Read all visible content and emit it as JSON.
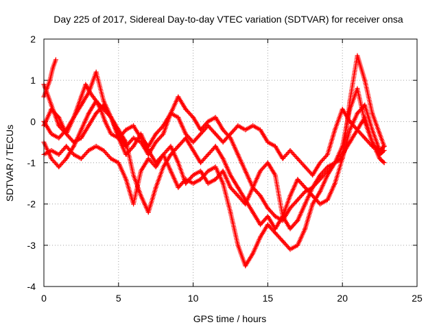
{
  "chart_data": {
    "type": "scatter",
    "title": "Day 225 of 2017, Sidereal Day-to-day VTEC variation (SDTVAR) for receiver onsa",
    "xlabel": "GPS time / hours",
    "ylabel": "SDTVAR / TECUs",
    "xlim": [
      0,
      25
    ],
    "ylim": [
      -4,
      2
    ],
    "xticks": [
      "0",
      "5",
      "10",
      "15",
      "20",
      "25"
    ],
    "yticks": [
      "-4",
      "-3",
      "-2",
      "-1",
      "0",
      "1",
      "2"
    ],
    "grid": true,
    "marker": "+",
    "color": "#ff0000",
    "series": [
      {
        "x": [
          0,
          0.2,
          0.4,
          0.6,
          0.8
        ],
        "y": [
          0.6,
          0.8,
          1.0,
          1.3,
          1.5
        ]
      },
      {
        "x": [
          0,
          0.5,
          1.0,
          1.5,
          2.0,
          2.5,
          2.8,
          3.1,
          3.5,
          3.8,
          4.1,
          4.5,
          5.0,
          5.5,
          6.0,
          6.5,
          7.0,
          7.5,
          8.0,
          8.5,
          9.0,
          9.5,
          10.0,
          10.5,
          11.0,
          11.5,
          12.0,
          12.5,
          13.0,
          13.5,
          14.0,
          14.5,
          15.0,
          15.5,
          16.0,
          16.5,
          17.0,
          17.5,
          18.0,
          18.5,
          19.0,
          19.5,
          20.0,
          20.5,
          21.0,
          21.5,
          22.0,
          22.5,
          22.8
        ],
        "y": [
          0.9,
          0.4,
          -0.1,
          -0.3,
          0.1,
          0.6,
          0.9,
          0.7,
          0.5,
          0.3,
          0.0,
          -0.3,
          -0.4,
          -0.2,
          -0.1,
          -0.4,
          -0.6,
          -0.3,
          -0.1,
          0.2,
          0.1,
          -0.3,
          -0.5,
          -0.3,
          -0.1,
          -0.3,
          -0.5,
          -0.3,
          -0.1,
          -0.2,
          -0.1,
          -0.2,
          -0.5,
          -0.6,
          -0.9,
          -0.7,
          -0.9,
          -1.1,
          -1.3,
          -1.0,
          -0.8,
          -0.2,
          0.3,
          0.0,
          -0.2,
          -0.4,
          -0.6,
          -0.7,
          -0.6
        ]
      },
      {
        "x": [
          0,
          0.5,
          1.0,
          1.5,
          2.0,
          2.5,
          3.0,
          3.5,
          4.0,
          4.5,
          5.0,
          5.5,
          6.0,
          6.5,
          7.0,
          7.5,
          8.0,
          8.5,
          9.0,
          9.5,
          10.0,
          10.5,
          11.0,
          11.5,
          12.0,
          12.5,
          13.0,
          13.5,
          14.0,
          14.5,
          15.0,
          15.5,
          16.0,
          16.5,
          17.0,
          17.5,
          18.0,
          18.5,
          19.0,
          19.5,
          20.0,
          20.5,
          21.0,
          21.5,
          22.0,
          22.5,
          22.8
        ],
        "y": [
          -0.1,
          0.3,
          0.1,
          -0.3,
          -0.5,
          -0.4,
          -0.1,
          0.2,
          0.4,
          0.1,
          -0.3,
          -0.6,
          -0.4,
          -0.5,
          -0.8,
          -0.5,
          -0.3,
          0.2,
          0.6,
          0.3,
          0.1,
          -0.2,
          0.0,
          0.1,
          -0.2,
          -0.4,
          -0.8,
          -1.2,
          -1.6,
          -1.8,
          -2.1,
          -2.3,
          -2.4,
          -2.1,
          -1.9,
          -1.7,
          -1.6,
          -1.4,
          -1.2,
          -1.0,
          -0.8,
          -0.5,
          -0.2,
          0.1,
          -0.5,
          -0.9,
          -1.0
        ]
      },
      {
        "x": [
          0,
          0.5,
          1.0,
          1.5,
          2.0,
          2.5,
          3.0,
          3.5,
          4.0,
          4.5,
          5.0,
          5.5,
          6.0,
          6.5,
          7.0,
          7.5,
          8.0,
          8.5,
          9.0,
          9.5,
          10.0,
          10.5,
          11.0,
          11.5,
          12.0,
          12.5,
          13.0,
          13.5,
          14.0,
          14.5,
          15.0,
          15.5,
          16.0,
          16.5,
          17.0,
          17.5,
          18.0,
          18.5,
          19.0,
          19.5,
          20.0,
          20.5,
          21.0,
          21.5,
          22.0,
          22.5,
          22.8
        ],
        "y": [
          -0.5,
          -0.9,
          -1.1,
          -0.9,
          -0.6,
          -0.2,
          0.2,
          0.5,
          0.3,
          0.1,
          -0.4,
          -0.8,
          -0.6,
          -0.3,
          -0.7,
          -1.0,
          -0.8,
          -1.2,
          -1.6,
          -1.4,
          -1.5,
          -1.4,
          -1.2,
          -1.1,
          -1.5,
          -2.2,
          -3.0,
          -3.5,
          -3.2,
          -2.8,
          -2.5,
          -2.7,
          -2.9,
          -3.1,
          -3.0,
          -2.6,
          -2.0,
          -1.7,
          -1.3,
          -1.0,
          -0.6,
          0.3,
          0.8,
          0.0,
          -0.5,
          -0.8,
          -0.7
        ]
      },
      {
        "x": [
          0,
          0.5,
          1.0,
          1.5,
          2.0,
          2.5,
          3.0,
          3.5,
          4.0,
          4.5,
          5.0,
          5.5,
          6.0,
          6.5,
          7.0,
          7.5,
          8.0,
          8.5,
          9.0,
          9.5,
          10.0,
          10.5,
          11.0,
          11.5,
          12.0,
          12.5,
          13.0,
          13.5,
          14.0,
          14.5,
          15.0,
          15.5,
          16.0,
          16.5,
          17.0,
          17.5,
          18.0,
          18.5,
          19.0,
          19.5,
          20.0,
          20.5,
          21.0,
          21.5,
          22.0,
          22.5,
          22.8
        ],
        "y": [
          -0.8,
          -0.7,
          -0.8,
          -0.6,
          -0.8,
          -0.9,
          -0.7,
          -0.6,
          -0.7,
          -0.9,
          -1.0,
          -1.4,
          -2.0,
          -1.2,
          -0.9,
          -1.1,
          -0.8,
          -0.6,
          -1.0,
          -1.5,
          -1.3,
          -1.2,
          -1.5,
          -1.4,
          -1.2,
          -1.6,
          -1.8,
          -2.0,
          -1.6,
          -1.2,
          -1.0,
          -1.3,
          -2.3,
          -2.6,
          -2.4,
          -2.0,
          -1.6,
          -1.3,
          -1.1,
          -1.0,
          -0.9,
          0.5,
          1.6,
          1.0,
          0.2,
          -0.3,
          -0.6
        ]
      },
      {
        "x": [
          0,
          0.5,
          1.0,
          1.5,
          2.0,
          2.5,
          3.0,
          3.5,
          4.0,
          4.5,
          5.0,
          5.5,
          6.0,
          6.5,
          7.0,
          7.5,
          8.0,
          8.5,
          9.0,
          9.5,
          10.0,
          10.5,
          11.0,
          11.5,
          12.0,
          12.5,
          13.0,
          13.5,
          14.0,
          14.5,
          15.0,
          15.5,
          16.0,
          16.5,
          17.0,
          17.5,
          18.0,
          18.5,
          19.0,
          19.5,
          20.0,
          20.5,
          21.0,
          21.5,
          22.0,
          22.5,
          22.8
        ],
        "y": [
          0.0,
          -0.3,
          -0.4,
          -0.2,
          0.1,
          0.4,
          0.7,
          1.2,
          0.5,
          0.1,
          -0.2,
          -0.5,
          -1.3,
          -1.8,
          -2.2,
          -1.6,
          -1.1,
          -0.8,
          -0.6,
          -0.4,
          -0.7,
          -1.0,
          -0.8,
          -0.6,
          -0.9,
          -1.3,
          -1.6,
          -1.9,
          -2.2,
          -2.5,
          -2.3,
          -2.6,
          -2.3,
          -1.8,
          -1.4,
          -1.6,
          -1.8,
          -2.0,
          -1.9,
          -1.5,
          -0.9,
          -0.2,
          0.2,
          0.4,
          -0.2,
          -0.7,
          -0.6
        ]
      }
    ]
  }
}
